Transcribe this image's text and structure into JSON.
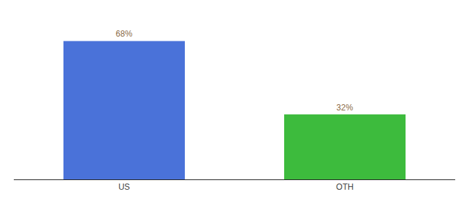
{
  "chart_data": {
    "type": "bar",
    "categories": [
      "US",
      "OTH"
    ],
    "values": [
      68,
      32
    ],
    "value_labels": [
      "68%",
      "32%"
    ],
    "colors": [
      "#4a72d9",
      "#3dbb3d"
    ],
    "ylim": [
      0,
      78
    ],
    "grid": false,
    "data_labels": true,
    "tick_labels": "x"
  }
}
